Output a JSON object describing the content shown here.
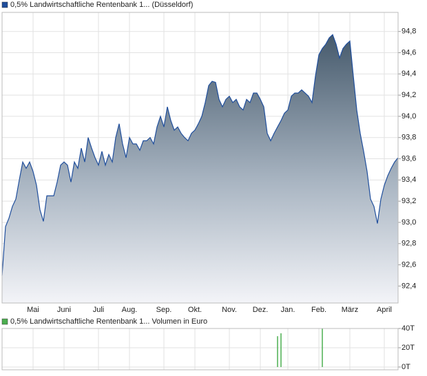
{
  "chart_data": [
    {
      "type": "line",
      "series": [
        {
          "name": "0,5% Landwirtschaftliche Rentenbank 1... (Düsseldorf)",
          "color": "#1f4e9c",
          "values": [
            92.5,
            92.96,
            93.04,
            93.15,
            93.22,
            93.4,
            93.57,
            93.51,
            93.57,
            93.48,
            93.35,
            93.12,
            93.01,
            93.25,
            93.25,
            93.25,
            93.38,
            93.54,
            93.57,
            93.54,
            93.38,
            93.57,
            93.51,
            93.7,
            93.57,
            93.8,
            93.7,
            93.61,
            93.54,
            93.67,
            93.54,
            93.64,
            93.57,
            93.8,
            93.93,
            93.74,
            93.61,
            93.8,
            93.74,
            93.74,
            93.68,
            93.77,
            93.77,
            93.8,
            93.74,
            93.9,
            94.0,
            93.9,
            94.09,
            93.96,
            93.87,
            93.9,
            93.84,
            93.8,
            93.77,
            93.84,
            93.87,
            93.93,
            94.0,
            94.13,
            94.29,
            94.33,
            94.32,
            94.16,
            94.09,
            94.16,
            94.19,
            94.13,
            94.16,
            94.09,
            94.06,
            94.16,
            94.13,
            94.22,
            94.22,
            94.16,
            94.09,
            93.84,
            93.77,
            93.84,
            93.9,
            93.96,
            94.03,
            94.06,
            94.19,
            94.22,
            94.22,
            94.25,
            94.22,
            94.19,
            94.13,
            94.38,
            94.58,
            94.64,
            94.68,
            94.74,
            94.77,
            94.68,
            94.55,
            94.64,
            94.68,
            94.71,
            94.38,
            94.06,
            93.84,
            93.67,
            93.48,
            93.22,
            93.15,
            92.99,
            93.22,
            93.35,
            93.44,
            93.51,
            93.57,
            93.61
          ]
        }
      ],
      "xlim": [
        0,
        115
      ],
      "xticks": [
        {
          "value": 9,
          "label": "Mai"
        },
        {
          "value": 18,
          "label": "Juni"
        },
        {
          "value": 28,
          "label": "Juli"
        },
        {
          "value": 37,
          "label": "Aug."
        },
        {
          "value": 47,
          "label": "Sep."
        },
        {
          "value": 56,
          "label": "Okt."
        },
        {
          "value": 66,
          "label": "Nov."
        },
        {
          "value": 75,
          "label": "Dez."
        },
        {
          "value": 83,
          "label": "Jan."
        },
        {
          "value": 92,
          "label": "Feb."
        },
        {
          "value": 101,
          "label": "März"
        },
        {
          "value": 111,
          "label": "April"
        }
      ],
      "ylim": [
        92.24,
        94.98
      ],
      "yticks": [
        {
          "value": 92.4,
          "label": "92,4"
        },
        {
          "value": 92.6,
          "label": "92,6"
        },
        {
          "value": 92.8,
          "label": "92,8"
        },
        {
          "value": 93.0,
          "label": "93,0"
        },
        {
          "value": 93.2,
          "label": "93,2"
        },
        {
          "value": 93.4,
          "label": "93,4"
        },
        {
          "value": 93.6,
          "label": "93,6"
        },
        {
          "value": 93.8,
          "label": "93,8"
        },
        {
          "value": 94.0,
          "label": "94,0"
        },
        {
          "value": 94.2,
          "label": "94,2"
        },
        {
          "value": 94.4,
          "label": "94,4"
        },
        {
          "value": 94.6,
          "label": "94,6"
        },
        {
          "value": 94.8,
          "label": "94,8"
        }
      ],
      "grid": true
    },
    {
      "type": "bar",
      "series": [
        {
          "name": "0,5% Landwirtschaftliche Rentenbank 1... Volumen in Euro",
          "color": "#4caf50",
          "values": [
            0,
            0,
            0,
            0,
            0,
            0,
            0,
            0,
            0,
            0,
            0,
            0,
            0,
            0,
            0,
            0,
            0,
            0,
            0,
            0,
            0,
            0,
            0,
            0,
            0,
            0,
            0,
            0,
            0,
            0,
            0,
            0,
            0,
            0,
            0,
            0,
            0,
            0,
            0,
            0,
            0,
            0,
            0,
            0,
            0,
            0,
            0,
            0,
            0,
            0,
            0,
            0,
            0,
            0,
            0,
            0,
            0,
            0,
            0,
            0,
            0,
            0,
            0,
            0,
            0,
            0,
            0,
            0,
            0,
            0,
            0,
            0,
            0,
            0,
            0,
            0,
            0,
            0,
            0,
            0,
            32,
            35,
            0,
            0,
            0,
            0,
            0,
            0,
            0,
            0,
            0,
            0,
            0,
            40,
            0,
            0,
            0,
            0,
            0,
            0,
            0,
            0,
            0,
            0,
            0,
            0,
            0,
            0,
            0,
            0,
            0,
            0,
            0,
            0,
            0,
            0
          ]
        }
      ],
      "xlim": [
        0,
        115
      ],
      "ylim": [
        -2.9,
        40
      ],
      "yticks": [
        {
          "value": 0,
          "label": "0T"
        },
        {
          "value": 20,
          "label": "20T"
        },
        {
          "value": 40,
          "label": "40T"
        }
      ],
      "grid": true
    }
  ]
}
